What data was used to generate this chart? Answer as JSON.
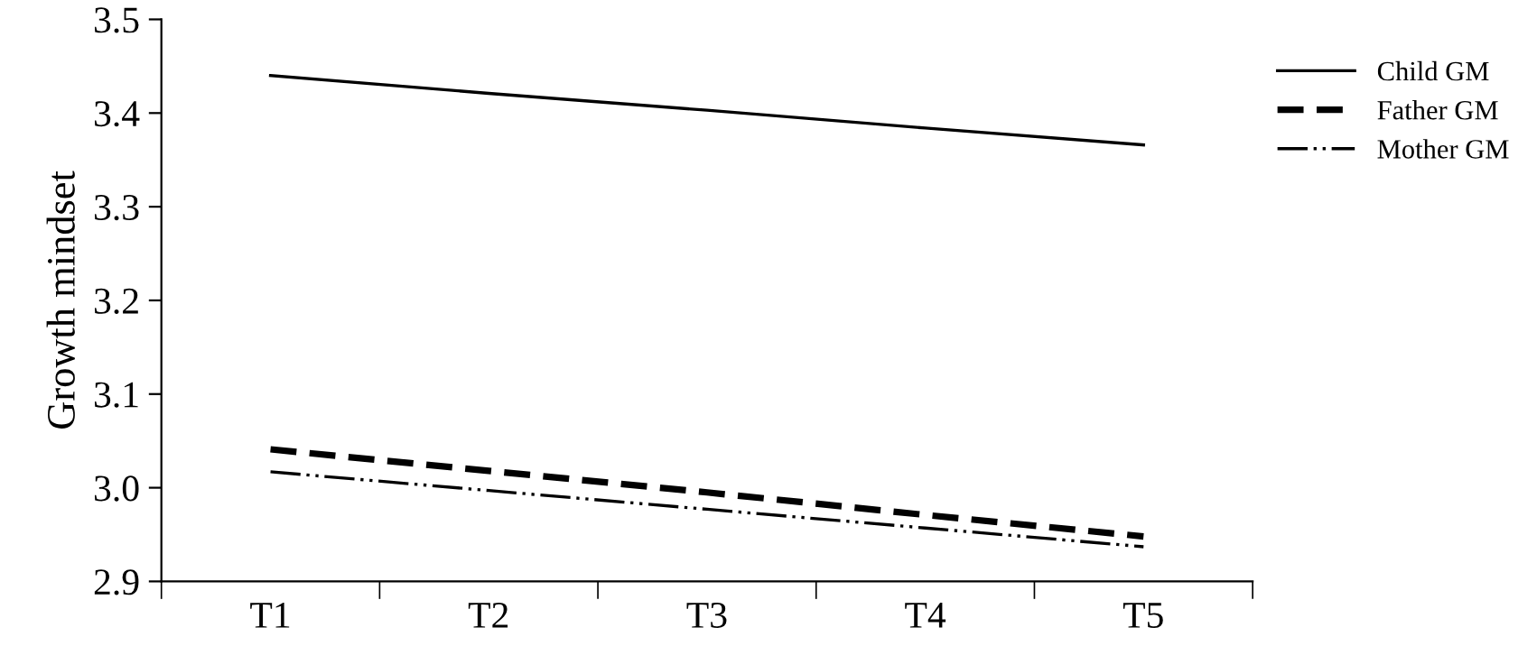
{
  "chart_data": {
    "type": "line",
    "ylabel": "Growth mindset",
    "categories": [
      "T1",
      "T2",
      "T3",
      "T4",
      "T5"
    ],
    "series": [
      {
        "name": "Child GM",
        "color": "#000000",
        "line_style": "solid",
        "values": [
          3.44,
          3.421,
          3.403,
          3.384,
          3.366
        ]
      },
      {
        "name": "Father GM",
        "color": "#000000",
        "line_style": "dashed",
        "values": [
          3.041,
          3.018,
          2.995,
          2.971,
          2.948
        ]
      },
      {
        "name": "Mother GM",
        "color": "#000000",
        "line_style": "dashdotdot",
        "values": [
          3.017,
          2.997,
          2.977,
          2.957,
          2.937
        ]
      }
    ],
    "ylim": [
      2.9,
      3.5
    ],
    "yticks": [
      2.9,
      {
        "value": 3.0,
        "label": "3.0"
      },
      3.1,
      3.2,
      3.3,
      3.4,
      3.5
    ],
    "grid": false,
    "legend": "top right",
    "marker": "none"
  }
}
